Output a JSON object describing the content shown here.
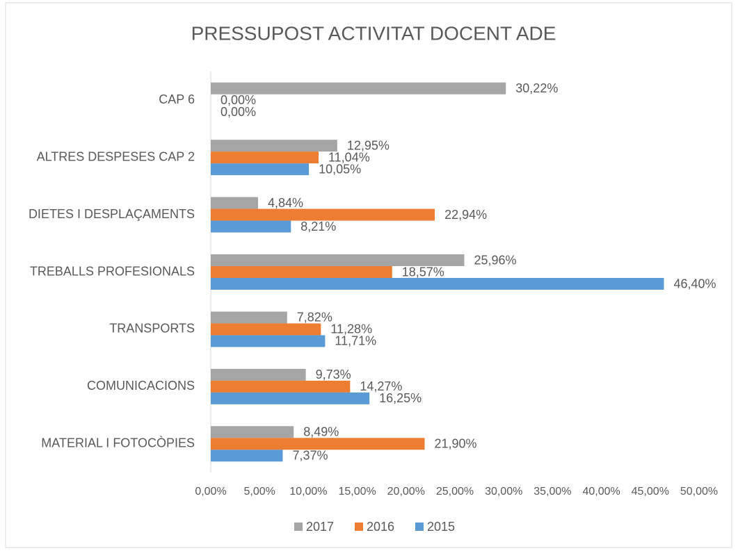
{
  "chart_data": {
    "type": "hbar",
    "title": "PRESSUPOST ACTIVITAT DOCENT ADE",
    "categories": [
      "CAP 6",
      "ALTRES DESPESES CAP 2",
      "DIETES I DESPLAÇAMENTS",
      "TREBALLS PROFESIONALS",
      "TRANSPORTS",
      "COMUNICACIONS",
      "MATERIAL I FOTOCÒPIES"
    ],
    "series": [
      {
        "name": "2017",
        "color": "#a5a5a5",
        "values": [
          30.22,
          12.95,
          4.84,
          25.96,
          7.82,
          9.73,
          8.49
        ],
        "value_labels": [
          "30,22%",
          "12,95%",
          "4,84%",
          "25,96%",
          "7,82%",
          "9,73%",
          "8,49%"
        ]
      },
      {
        "name": "2016",
        "color": "#ed7d31",
        "values": [
          0,
          11.04,
          22.94,
          18.57,
          11.28,
          14.27,
          21.9
        ],
        "value_labels": [
          "0,00%",
          "11,04%",
          "22,94%",
          "18,57%",
          "11,28%",
          "14,27%",
          "21,90%"
        ]
      },
      {
        "name": "2015",
        "color": "#5b9bd5",
        "values": [
          0,
          10.05,
          8.21,
          46.4,
          11.71,
          16.25,
          7.37
        ],
        "value_labels": [
          "0,00%",
          "10,05%",
          "8,21%",
          "46,40%",
          "11,71%",
          "16,25%",
          "7,37%"
        ]
      }
    ],
    "xlim": [
      0,
      50
    ],
    "xticks": [
      {
        "value": 0,
        "label": "0,00%"
      },
      {
        "value": 5,
        "label": "5,00%"
      },
      {
        "value": 10,
        "label": "10,00%"
      },
      {
        "value": 15,
        "label": "15,00%"
      },
      {
        "value": 20,
        "label": "20,00%"
      },
      {
        "value": 25,
        "label": "25,00%"
      },
      {
        "value": 30,
        "label": "30,00%"
      },
      {
        "value": 35,
        "label": "35,00%"
      },
      {
        "value": 40,
        "label": "40,00%"
      },
      {
        "value": 45,
        "label": "45,00%"
      },
      {
        "value": 50,
        "label": "50,00%"
      }
    ],
    "grid": false,
    "legend": "bottom"
  }
}
